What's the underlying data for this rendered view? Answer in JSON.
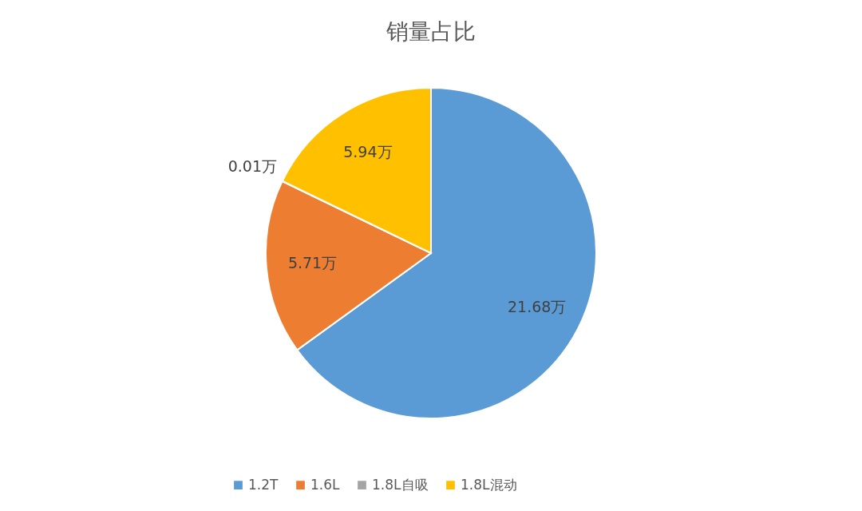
{
  "chart_data": {
    "type": "pie",
    "title": "销量占比",
    "categories": [
      "1.2T",
      "1.6L",
      "1.8L自吸",
      "1.8L混动"
    ],
    "values": [
      21.68,
      5.71,
      0.01,
      5.94
    ],
    "value_labels": [
      "21.68万",
      "5.71万",
      "0.01万",
      "5.94万"
    ],
    "colors": [
      "#5b9bd5",
      "#ed7d31",
      "#a5a5a5",
      "#ffc000"
    ],
    "legend": "bottom"
  }
}
